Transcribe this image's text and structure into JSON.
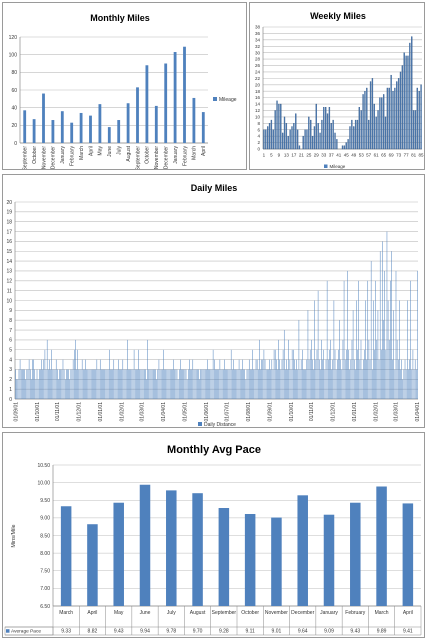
{
  "chart_data": [
    {
      "type": "bar",
      "title": "Monthly Miles",
      "categories": [
        "September",
        "October",
        "November",
        "December",
        "January",
        "February",
        "March",
        "April",
        "May",
        "June",
        "July",
        "August",
        "September",
        "October",
        "November",
        "December",
        "January",
        "February",
        "March",
        "April"
      ],
      "series": [
        {
          "name": "Mileage",
          "values": [
            37,
            27,
            56,
            26,
            36,
            23,
            34,
            31,
            44,
            18,
            26,
            45,
            63,
            88,
            42,
            90,
            103,
            109,
            51,
            35
          ]
        }
      ],
      "ylim": [
        0,
        120
      ],
      "yticks": [
        0,
        20,
        40,
        60,
        80,
        100,
        120
      ],
      "legend": "right",
      "grid": true,
      "color": "#4f81bd"
    },
    {
      "type": "bar",
      "title": "Weekly Miles",
      "x_labels": [
        "1",
        "5",
        "9",
        "13",
        "17",
        "21",
        "25",
        "29",
        "33",
        "37",
        "41",
        "45",
        "49",
        "53",
        "57",
        "61",
        "65",
        "69",
        "73",
        "77",
        "81",
        "85"
      ],
      "series": [
        {
          "name": "Mileage",
          "values": [
            6,
            6,
            7,
            8,
            9,
            6,
            12,
            15,
            14,
            14,
            5,
            10,
            8,
            4,
            6,
            7,
            8,
            11,
            6,
            1,
            0,
            4,
            6,
            6,
            10,
            9,
            4,
            7,
            14,
            8,
            5,
            9,
            13,
            13,
            11,
            13,
            8,
            9,
            5,
            3,
            0,
            0,
            1,
            1,
            2,
            3,
            7,
            9,
            7,
            9,
            9,
            13,
            12,
            17,
            18,
            19,
            9,
            21,
            22,
            14,
            10,
            12,
            16,
            16,
            17,
            10,
            19,
            19,
            23,
            18,
            19,
            21,
            22,
            24,
            26,
            30,
            29,
            29,
            33,
            35,
            12,
            12,
            19,
            18,
            20
          ]
        }
      ],
      "ylim": [
        0,
        38
      ],
      "yticks": [
        0,
        2,
        4,
        6,
        8,
        10,
        12,
        14,
        16,
        18,
        20,
        22,
        24,
        26,
        28,
        30,
        32,
        34,
        36,
        38
      ],
      "legend": "bottom",
      "grid": true,
      "color": "#4f81bd"
    },
    {
      "type": "bar",
      "title": "Daily Miles",
      "x_labels": [
        "01/09/01",
        "01/10/01",
        "01/11/01",
        "01/12/01",
        "01/01/01",
        "01/02/01",
        "01/03/01",
        "01/04/01",
        "01/05/01",
        "01/06/01",
        "01/07/01",
        "01/08/01",
        "01/09/01",
        "01/10/01",
        "01/11/01",
        "01/12/01",
        "01/01/01",
        "01/02/01",
        "01/03/01",
        "01/04/01"
      ],
      "series": [
        {
          "name": "Daily Distance",
          "values": [
            3,
            2,
            2,
            3,
            4,
            3,
            3,
            3,
            3,
            2,
            3,
            3,
            4,
            3,
            2,
            4,
            4,
            3,
            2,
            3,
            2,
            3,
            3,
            4,
            3,
            4,
            5,
            3,
            6,
            3,
            4,
            3,
            5,
            3,
            3,
            3,
            4,
            3,
            2,
            3,
            3,
            3,
            4,
            3,
            2,
            3,
            3,
            3,
            2,
            3,
            3,
            4,
            5,
            6,
            3,
            5,
            3,
            3,
            3,
            4,
            3,
            3,
            4,
            3,
            3,
            3,
            3,
            3,
            3,
            3,
            3,
            3,
            4,
            3,
            3,
            4,
            3,
            3,
            3,
            3,
            3,
            3,
            3,
            5,
            3,
            3,
            3,
            4,
            3,
            3,
            3,
            4,
            3,
            3,
            3,
            4,
            3,
            3,
            3,
            6,
            3,
            3,
            3,
            3,
            3,
            5,
            3,
            3,
            3,
            5,
            3,
            3,
            3,
            3,
            3,
            3,
            2,
            6,
            3,
            3,
            3,
            3,
            3,
            3,
            3,
            2,
            3,
            4,
            3,
            3,
            3,
            5,
            3,
            3,
            3,
            3,
            3,
            3,
            3,
            3,
            4,
            3,
            3,
            3,
            2,
            3,
            4,
            3,
            3,
            3,
            3,
            3,
            2,
            3,
            4,
            3,
            3,
            4,
            3,
            3,
            3,
            3,
            3,
            2,
            3,
            3,
            3,
            3,
            3,
            3,
            4,
            3,
            3,
            3,
            3,
            5,
            4,
            3,
            3,
            3,
            3,
            4,
            3,
            3,
            3,
            4,
            3,
            3,
            3,
            3,
            3,
            5,
            3,
            4,
            3,
            3,
            3,
            3,
            4,
            3,
            3,
            4,
            3,
            3,
            2,
            3,
            3,
            4,
            3,
            3,
            5,
            3,
            3,
            4,
            4,
            3,
            6,
            3,
            4,
            4,
            5,
            4,
            3,
            3,
            3,
            4,
            3,
            4,
            3,
            5,
            5,
            4,
            3,
            6,
            4,
            3,
            4,
            5,
            7,
            3,
            4,
            3,
            6,
            4,
            3,
            5,
            5,
            4,
            3,
            4,
            3,
            8,
            3,
            4,
            5,
            3,
            3,
            3,
            4,
            9,
            4,
            5,
            6,
            4,
            3,
            10,
            4,
            5,
            11,
            4,
            3,
            6,
            4,
            5,
            3,
            4,
            12,
            4,
            5,
            6,
            3,
            4,
            10,
            5,
            3,
            4,
            5,
            8,
            4,
            3,
            6,
            12,
            4,
            5,
            13,
            5,
            3,
            4,
            6,
            9,
            4,
            3,
            10,
            5,
            12,
            4,
            6,
            3,
            4,
            5,
            10,
            4,
            12,
            6,
            4,
            14,
            3,
            10,
            5,
            12,
            6,
            9,
            4,
            15,
            5,
            16,
            8,
            13,
            5,
            17,
            10,
            6,
            12,
            15,
            4,
            9,
            3,
            13,
            6,
            4,
            10,
            3,
            4,
            2,
            3,
            4,
            3,
            10,
            3,
            4,
            12,
            3,
            5,
            3,
            4,
            3,
            13
          ]
        }
      ],
      "ylim": [
        0,
        20
      ],
      "yticks": [
        0,
        1,
        2,
        3,
        4,
        5,
        6,
        7,
        8,
        9,
        10,
        11,
        12,
        13,
        14,
        15,
        16,
        17,
        18,
        19,
        20
      ],
      "legend": "bottom",
      "grid": true,
      "color": "#4f81bd"
    },
    {
      "type": "bar",
      "title": "Monthly Avg Pace",
      "ylabel": "Mins/Mile",
      "categories": [
        "March",
        "April",
        "May",
        "June",
        "July",
        "August",
        "September",
        "October",
        "November",
        "December",
        "January",
        "February",
        "March",
        "April"
      ],
      "series": [
        {
          "name": "Average Pace",
          "values": [
            9.33,
            8.82,
            9.43,
            9.94,
            9.78,
            9.7,
            9.28,
            9.11,
            9.01,
            9.64,
            9.09,
            9.43,
            9.89,
            9.41
          ]
        }
      ],
      "value_labels": [
        "9.33",
        "8.82",
        "9.43",
        "9.94",
        "9.78",
        "9.70",
        "9.28",
        "9.11",
        "9.01",
        "9.64",
        "9.09",
        "9.43",
        "9.89",
        "9.41"
      ],
      "ylim": [
        6.5,
        10.5
      ],
      "yticks": [
        "6.50",
        "7.00",
        "7.50",
        "8.00",
        "8.50",
        "9.00",
        "9.50",
        "10.00",
        "10.50"
      ],
      "legend": "data-table",
      "grid": true,
      "color": "#4f81bd"
    }
  ]
}
